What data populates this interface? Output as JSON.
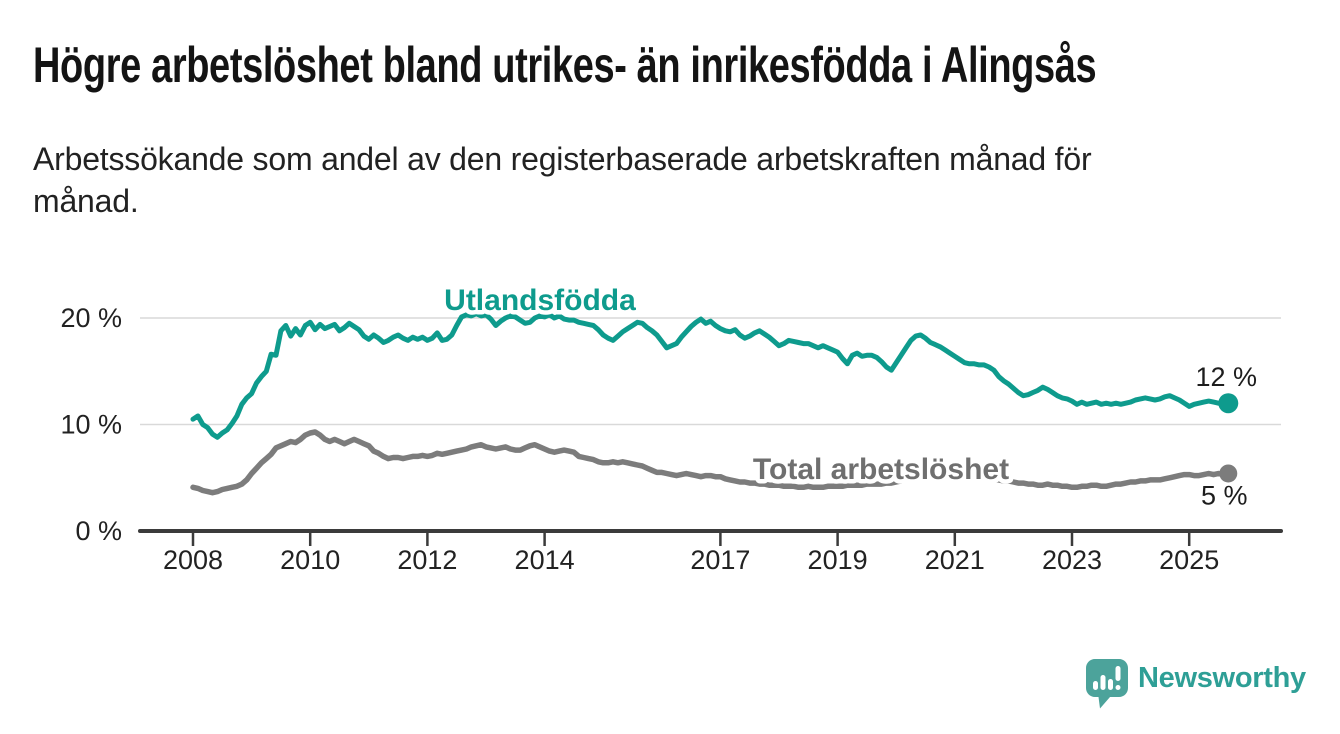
{
  "header": {
    "title": "Högre arbetslöshet bland utrikes- än inrikesfödda i Alingsås",
    "subtitle_line1": "Arbetssökande som andel av den registerbaserade arbetskraften månad för",
    "subtitle_line2": "månad."
  },
  "chart_data": {
    "type": "line",
    "title": "",
    "xlabel": "",
    "ylabel": "",
    "grid": "horizontal",
    "ylim": [
      0,
      22
    ],
    "xlim_years": [
      2007.1,
      2026.6
    ],
    "y_ticks": [
      {
        "value": 20,
        "label": "20 %"
      },
      {
        "value": 10,
        "label": "10 %"
      },
      {
        "value": 0,
        "label": "0 %"
      }
    ],
    "x_ticks": [
      {
        "year": 2008,
        "label": "2008"
      },
      {
        "year": 2010,
        "label": "2010"
      },
      {
        "year": 2012,
        "label": "2012"
      },
      {
        "year": 2014,
        "label": "2014"
      },
      {
        "year": 2017,
        "label": "2017"
      },
      {
        "year": 2019,
        "label": "2019"
      },
      {
        "year": 2021,
        "label": "2021"
      },
      {
        "year": 2023,
        "label": "2023"
      },
      {
        "year": 2025,
        "label": "2025"
      }
    ],
    "series": [
      {
        "name": "Utlandsfödda",
        "color": "#0E9B8D",
        "label_color": "#0E9B8D",
        "end_label": "12 %",
        "start_year": 2008,
        "points_per_year": 12,
        "values": [
          10.5,
          10.8,
          10.0,
          9.7,
          9.1,
          8.8,
          9.2,
          9.5,
          10.1,
          10.8,
          11.9,
          12.5,
          12.9,
          13.9,
          14.5,
          15.0,
          16.6,
          16.5,
          18.8,
          19.3,
          18.3,
          19.0,
          18.4,
          19.3,
          19.6,
          18.9,
          19.4,
          19.0,
          19.2,
          19.4,
          18.8,
          19.1,
          19.5,
          19.2,
          18.9,
          18.3,
          18.0,
          18.4,
          18.1,
          17.7,
          17.9,
          18.2,
          18.4,
          18.1,
          17.9,
          18.2,
          18.0,
          18.2,
          17.9,
          18.1,
          18.6,
          17.9,
          18.0,
          18.4,
          19.3,
          20.1,
          20.3,
          20.2,
          20.4,
          20.2,
          20.3,
          19.9,
          19.3,
          19.7,
          20.0,
          20.2,
          20.1,
          19.8,
          19.5,
          19.6,
          20.0,
          20.2,
          20.1,
          20.3,
          20.0,
          20.2,
          19.9,
          19.8,
          19.8,
          19.6,
          19.5,
          19.4,
          19.3,
          18.9,
          18.4,
          18.1,
          17.9,
          18.3,
          18.7,
          19.0,
          19.3,
          19.6,
          19.5,
          19.1,
          18.8,
          18.4,
          17.8,
          17.2,
          17.4,
          17.6,
          18.2,
          18.7,
          19.2,
          19.6,
          19.9,
          19.5,
          19.7,
          19.3,
          19.0,
          18.8,
          18.7,
          18.9,
          18.4,
          18.1,
          18.3,
          18.6,
          18.8,
          18.5,
          18.2,
          17.8,
          17.4,
          17.6,
          17.9,
          17.8,
          17.7,
          17.6,
          17.6,
          17.4,
          17.2,
          17.4,
          17.2,
          17.0,
          16.8,
          16.2,
          15.7,
          16.5,
          16.7,
          16.4,
          16.5,
          16.5,
          16.3,
          15.9,
          15.4,
          15.1,
          15.8,
          16.5,
          17.2,
          17.9,
          18.3,
          18.4,
          18.1,
          17.7,
          17.5,
          17.3,
          17.0,
          16.7,
          16.4,
          16.1,
          15.8,
          15.7,
          15.7,
          15.6,
          15.6,
          15.4,
          15.1,
          14.5,
          14.1,
          13.8,
          13.4,
          13.0,
          12.7,
          12.8,
          13.0,
          13.2,
          13.5,
          13.3,
          13.0,
          12.7,
          12.5,
          12.4,
          12.2,
          11.9,
          12.1,
          11.9,
          12.0,
          12.1,
          11.9,
          12.0,
          11.9,
          12.0,
          11.9,
          12.0,
          12.1,
          12.3,
          12.4,
          12.5,
          12.4,
          12.3,
          12.4,
          12.6,
          12.7,
          12.5,
          12.3,
          12.0,
          11.7,
          11.9,
          12.0,
          12.1,
          12.2,
          12.1,
          12.0,
          12.0,
          12.0
        ]
      },
      {
        "name": "Total arbetslöshet",
        "color": "#7C7C7C",
        "label_color": "#6F6F6F",
        "end_label": "5 %",
        "start_year": 2008,
        "points_per_year": 12,
        "values": [
          4.1,
          4.0,
          3.8,
          3.7,
          3.6,
          3.7,
          3.9,
          4.0,
          4.1,
          4.2,
          4.4,
          4.8,
          5.4,
          5.9,
          6.4,
          6.8,
          7.2,
          7.8,
          8.0,
          8.2,
          8.4,
          8.3,
          8.6,
          9.0,
          9.2,
          9.3,
          9.0,
          8.6,
          8.4,
          8.6,
          8.4,
          8.2,
          8.4,
          8.6,
          8.4,
          8.2,
          8.0,
          7.5,
          7.3,
          7.0,
          6.8,
          6.9,
          6.9,
          6.8,
          6.9,
          7.0,
          7.0,
          7.1,
          7.0,
          7.1,
          7.3,
          7.2,
          7.3,
          7.4,
          7.5,
          7.6,
          7.7,
          7.9,
          8.0,
          8.1,
          7.9,
          7.8,
          7.7,
          7.8,
          7.9,
          7.7,
          7.6,
          7.6,
          7.8,
          8.0,
          8.1,
          7.9,
          7.7,
          7.5,
          7.4,
          7.5,
          7.6,
          7.5,
          7.4,
          7.0,
          6.9,
          6.8,
          6.7,
          6.5,
          6.4,
          6.4,
          6.5,
          6.4,
          6.5,
          6.4,
          6.3,
          6.2,
          6.1,
          5.9,
          5.7,
          5.5,
          5.5,
          5.4,
          5.3,
          5.2,
          5.3,
          5.4,
          5.3,
          5.2,
          5.1,
          5.2,
          5.2,
          5.1,
          5.1,
          4.9,
          4.8,
          4.7,
          4.6,
          4.6,
          4.5,
          4.5,
          4.4,
          4.4,
          4.3,
          4.3,
          4.3,
          4.2,
          4.2,
          4.2,
          4.1,
          4.1,
          4.2,
          4.1,
          4.1,
          4.1,
          4.2,
          4.2,
          4.2,
          4.2,
          4.3,
          4.3,
          4.3,
          4.3,
          4.4,
          4.4,
          4.4,
          4.4,
          4.5,
          4.5,
          4.6,
          4.7,
          5.0,
          5.3,
          5.5,
          5.6,
          5.6,
          5.5,
          5.5,
          5.4,
          5.4,
          5.4,
          5.4,
          5.3,
          5.2,
          5.1,
          5.0,
          5.0,
          4.9,
          4.9,
          4.8,
          4.8,
          4.7,
          4.7,
          4.6,
          4.5,
          4.5,
          4.4,
          4.4,
          4.3,
          4.3,
          4.4,
          4.3,
          4.3,
          4.2,
          4.2,
          4.1,
          4.1,
          4.2,
          4.2,
          4.3,
          4.3,
          4.2,
          4.2,
          4.3,
          4.4,
          4.4,
          4.5,
          4.6,
          4.6,
          4.7,
          4.7,
          4.8,
          4.8,
          4.8,
          4.9,
          5.0,
          5.1,
          5.2,
          5.3,
          5.3,
          5.2,
          5.2,
          5.3,
          5.4,
          5.3,
          5.4,
          5.3,
          5.4
        ]
      }
    ]
  },
  "footer": {
    "brand": "Newsworthy",
    "brand_text_color": "#2E9F96",
    "brand_mark_color": "#4CA39B"
  },
  "colors": {
    "gridline": "#D9D9D9",
    "axis": "#3B3B3B",
    "axis_text": "#222222",
    "annotation_text": "#1D1D1D"
  }
}
